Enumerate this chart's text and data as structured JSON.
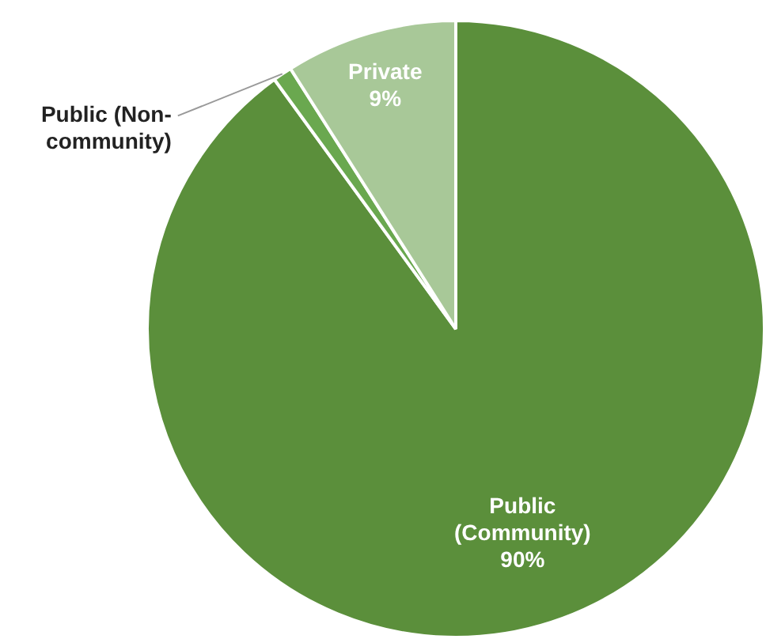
{
  "chart_data": {
    "type": "pie",
    "categories": [
      "Public (Community)",
      "Public (Non-community)",
      "Private"
    ],
    "values": [
      90,
      1,
      9
    ],
    "colors": [
      "#5b8f3b",
      "#6aa84f",
      "#a8c898"
    ],
    "value_labels": [
      "90%",
      null,
      "9%"
    ],
    "legend": false
  }
}
